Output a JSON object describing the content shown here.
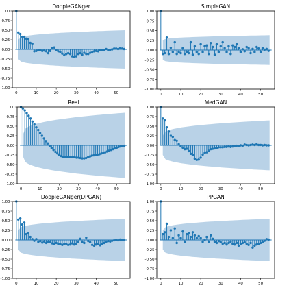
{
  "chart_data": [
    {
      "type": "stem",
      "title": "DoppleGANger",
      "xlim": [
        -2,
        57
      ],
      "ylim": [
        -1.0,
        1.0
      ],
      "xticks": [
        0,
        10,
        20,
        30,
        40,
        50
      ],
      "yticks": [
        "-1.00",
        "-0.75",
        "-0.50",
        "-0.25",
        "0.00",
        "0.25",
        "0.50",
        "0.75",
        "1.00"
      ],
      "confidence_band": {
        "start": 0.25,
        "end": 0.5
      },
      "values": [
        1.0,
        0.44,
        0.4,
        0.33,
        0.33,
        0.28,
        0.27,
        0.17,
        0.15,
        -0.05,
        -0.04,
        -0.02,
        -0.02,
        -0.04,
        -0.03,
        -0.05,
        -0.1,
        -0.04,
        0.04,
        0.05,
        -0.02,
        -0.05,
        -0.07,
        -0.11,
        -0.15,
        -0.12,
        -0.1,
        -0.12,
        -0.18,
        -0.2,
        -0.18,
        -0.12,
        -0.1,
        -0.14,
        -0.09,
        -0.12,
        -0.12,
        -0.09,
        -0.08,
        -0.05,
        -0.04,
        -0.05,
        -0.02,
        -0.02,
        -0.02,
        0.01,
        -0.02,
        -0.01,
        0.0,
        0.02,
        0.02,
        0.01,
        0.03,
        0.02,
        0.01
      ]
    },
    {
      "type": "stem",
      "title": "SimpleGAN",
      "xlim": [
        -2,
        57
      ],
      "ylim": [
        -1.0,
        1.0
      ],
      "xticks": [
        0,
        10,
        20,
        30,
        40,
        50
      ],
      "yticks": [
        "-1.00",
        "-0.75",
        "-0.50",
        "-0.25",
        "0.00",
        "0.25",
        "0.50",
        "0.75",
        "1.00"
      ],
      "confidence_band": {
        "start": 0.25,
        "end": 0.38
      },
      "values": [
        1.0,
        -0.1,
        -0.08,
        0.32,
        -0.1,
        0.06,
        -0.05,
        0.2,
        -0.1,
        -0.05,
        -0.08,
        0.05,
        -0.1,
        -0.05,
        -0.08,
        0.2,
        -0.12,
        0.1,
        -0.05,
        -0.1,
        0.15,
        -0.05,
        0.1,
        0.12,
        -0.1,
        0.18,
        0.08,
        -0.12,
        0.15,
        -0.05,
        0.1,
        0.2,
        0.05,
        -0.05,
        0.1,
        -0.1,
        0.12,
        0.08,
        0.15,
        0.05,
        -0.05,
        0.02,
        -0.03,
        0.08,
        0.05,
        -0.08,
        0.03,
        -0.05,
        0.08,
        0.04,
        -0.05,
        0.05,
        0.01,
        0.03,
        -0.02
      ]
    },
    {
      "type": "stem",
      "title": "Real",
      "xlim": [
        -2,
        57
      ],
      "ylim": [
        -1.0,
        1.0
      ],
      "xticks": [
        0,
        10,
        20,
        30,
        40,
        50
      ],
      "yticks": [
        "-1.00",
        "-0.75",
        "-0.50",
        "-0.25",
        "0.00",
        "0.25",
        "0.50",
        "0.75",
        "1.00"
      ],
      "confidence_band": {
        "start": 0.28,
        "end": 0.85
      },
      "values": [
        1.0,
        0.96,
        0.91,
        0.84,
        0.77,
        0.7,
        0.62,
        0.55,
        0.47,
        0.4,
        0.32,
        0.25,
        0.18,
        0.11,
        0.05,
        -0.01,
        -0.07,
        -0.12,
        -0.17,
        -0.21,
        -0.25,
        -0.28,
        -0.3,
        -0.31,
        -0.31,
        -0.31,
        -0.31,
        -0.31,
        -0.31,
        -0.32,
        -0.32,
        -0.33,
        -0.34,
        -0.34,
        -0.33,
        -0.31,
        -0.29,
        -0.27,
        -0.26,
        -0.25,
        -0.24,
        -0.23,
        -0.21,
        -0.2,
        -0.18,
        -0.16,
        -0.14,
        -0.12,
        -0.1,
        -0.08,
        -0.06,
        -0.04,
        -0.03,
        -0.02,
        -0.01
      ]
    },
    {
      "type": "stem",
      "title": "MedGAN",
      "xlim": [
        -2,
        57
      ],
      "ylim": [
        -1.0,
        1.0
      ],
      "xticks": [
        0,
        10,
        20,
        30,
        40,
        50
      ],
      "yticks": [
        "-1.00",
        "-0.75",
        "-0.50",
        "-0.25",
        "0.00",
        "0.25",
        "0.50",
        "0.75",
        "1.00"
      ],
      "confidence_band": {
        "start": 0.25,
        "end": 0.65
      },
      "values": [
        1.0,
        0.7,
        0.65,
        0.47,
        0.36,
        0.25,
        0.22,
        0.14,
        0.12,
        0.03,
        -0.02,
        -0.06,
        -0.1,
        -0.09,
        -0.15,
        -0.22,
        -0.25,
        -0.35,
        -0.38,
        -0.37,
        -0.32,
        -0.24,
        -0.2,
        -0.18,
        -0.14,
        -0.1,
        -0.09,
        -0.08,
        -0.07,
        -0.05,
        -0.05,
        -0.05,
        -0.04,
        -0.04,
        -0.03,
        -0.04,
        -0.03,
        -0.02,
        -0.01,
        -0.02,
        0.0,
        -0.01,
        0.02,
        0.01,
        0.0,
        0.01,
        0.02,
        0.01,
        0.03,
        0.01,
        0.01,
        0.0,
        0.01,
        0.0,
        0.0
      ]
    },
    {
      "type": "stem",
      "title": "DoppleGANger(DPGAN)",
      "xlim": [
        -2,
        57
      ],
      "ylim": [
        -1.0,
        1.0
      ],
      "xticks": [
        0,
        10,
        20,
        30,
        40,
        50
      ],
      "yticks": [
        "-1.00",
        "-0.75",
        "-0.50",
        "-0.25",
        "0.00",
        "0.25",
        "0.50",
        "0.75",
        "1.00"
      ],
      "confidence_band": {
        "start": 0.25,
        "end": 0.55
      },
      "values": [
        1.0,
        0.53,
        0.56,
        0.4,
        0.45,
        0.15,
        0.18,
        0.08,
        0.02,
        -0.02,
        0.02,
        -0.05,
        -0.03,
        -0.07,
        -0.04,
        -0.08,
        -0.06,
        -0.06,
        -0.09,
        -0.1,
        -0.08,
        -0.11,
        -0.1,
        -0.13,
        -0.1,
        -0.1,
        -0.13,
        -0.12,
        -0.09,
        -0.12,
        -0.1,
        -0.06,
        0.03,
        -0.05,
        -0.08,
        0.06,
        -0.03,
        -0.06,
        -0.13,
        -0.15,
        -0.12,
        -0.1,
        -0.14,
        -0.11,
        -0.08,
        -0.05,
        -0.03,
        -0.04,
        -0.02,
        -0.01,
        0.0,
        -0.01,
        0.01,
        0.0,
        0.0
      ]
    },
    {
      "type": "stem",
      "title": "PPGAN",
      "xlim": [
        -2,
        57
      ],
      "ylim": [
        -1.0,
        1.0
      ],
      "xticks": [
        0,
        10,
        20,
        30,
        40,
        50
      ],
      "yticks": [
        "-1.00",
        "-0.75",
        "-0.50",
        "-0.25",
        "0.00",
        "0.25",
        "0.50",
        "0.75",
        "1.00"
      ],
      "confidence_band": {
        "start": 0.25,
        "end": 0.55
      },
      "values": [
        1.0,
        0.15,
        0.2,
        0.42,
        0.08,
        0.25,
        0.05,
        0.3,
        -0.08,
        0.12,
        0.05,
        0.22,
        -0.05,
        0.15,
        0.18,
        0.08,
        0.2,
        0.12,
        0.05,
        0.1,
        0.05,
        -0.05,
        0.0,
        0.08,
        -0.05,
        0.12,
        0.03,
        -0.05,
        -0.08,
        -0.03,
        -0.06,
        -0.1,
        -0.08,
        -0.12,
        -0.08,
        -0.05,
        -0.1,
        -0.12,
        -0.08,
        -0.15,
        -0.1,
        -0.08,
        -0.06,
        -0.1,
        -0.13,
        -0.08,
        -0.2,
        -0.15,
        -0.12,
        -0.1,
        -0.08,
        -0.05,
        -0.02,
        0.02,
        0.01
      ]
    }
  ],
  "colors": {
    "stem": "#1f77b4",
    "band": "#b9d2e7",
    "axis": "#000000",
    "text": "#000000"
  }
}
